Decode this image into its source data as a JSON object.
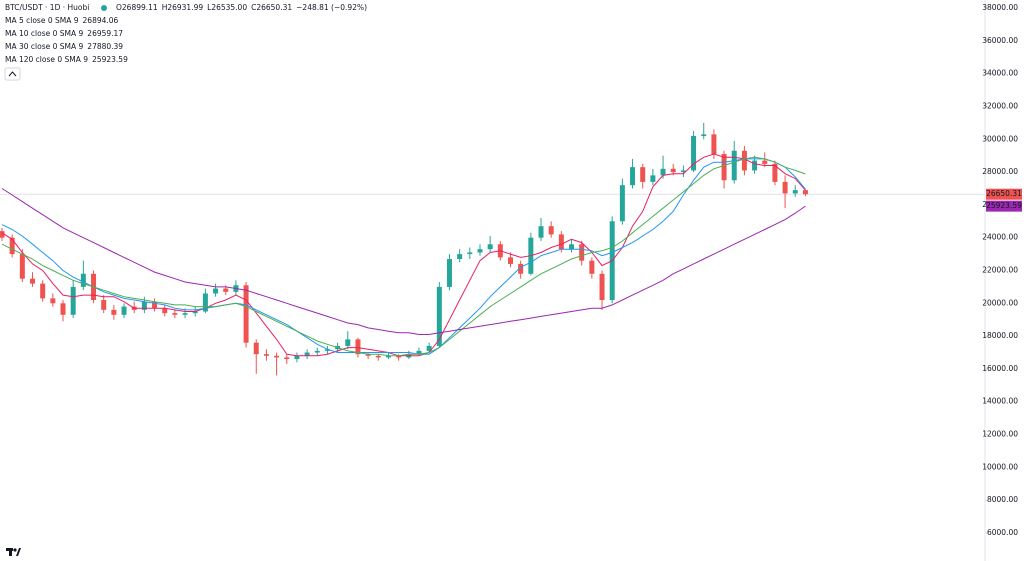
{
  "header": {
    "symbol": "BTC/USDT · 1D · Huobi",
    "ohlc": [
      "O26899.11",
      "H26931.99",
      "L26535.00",
      "C26650.31",
      "−248.81 (−0.92%)"
    ]
  },
  "chart_data": {
    "type": "candlestick",
    "up_color": "#26a69a",
    "down_color": "#ef5350",
    "candles": [
      [
        24400,
        24600,
        23800,
        24000
      ],
      [
        24000,
        24200,
        22800,
        23000
      ],
      [
        23000,
        23300,
        21300,
        21500
      ],
      [
        21500,
        21900,
        21000,
        21200
      ],
      [
        21200,
        21400,
        20100,
        20300
      ],
      [
        20300,
        20600,
        19800,
        20000
      ],
      [
        20000,
        20200,
        18900,
        19300
      ],
      [
        19300,
        21400,
        19100,
        21000
      ],
      [
        21000,
        22600,
        20800,
        21800
      ],
      [
        21800,
        22000,
        20000,
        20200
      ],
      [
        20200,
        20500,
        19400,
        19600
      ],
      [
        19600,
        19900,
        19000,
        19300
      ],
      [
        19300,
        20000,
        19100,
        19800
      ],
      [
        19800,
        20100,
        19400,
        19600
      ],
      [
        19600,
        20400,
        19400,
        20100
      ],
      [
        20100,
        20300,
        19500,
        19700
      ],
      [
        19700,
        19900,
        19200,
        19400
      ],
      [
        19400,
        19600,
        19100,
        19300
      ],
      [
        19300,
        19700,
        19100,
        19400
      ],
      [
        19400,
        19800,
        19200,
        19500
      ],
      [
        19500,
        20900,
        19400,
        20600
      ],
      [
        20600,
        21200,
        20400,
        20900
      ],
      [
        20900,
        21100,
        20500,
        20700
      ],
      [
        20700,
        21400,
        20500,
        21100
      ],
      [
        21100,
        21300,
        17300,
        17600
      ],
      [
        17600,
        17800,
        15700,
        16900
      ],
      [
        16900,
        17200,
        16500,
        16800
      ],
      [
        16800,
        17000,
        15600,
        16700
      ],
      [
        16700,
        16900,
        16300,
        16600
      ],
      [
        16600,
        17000,
        16400,
        16800
      ],
      [
        16800,
        17200,
        16600,
        17000
      ],
      [
        17000,
        17300,
        16800,
        17100
      ],
      [
        17100,
        17400,
        16900,
        17200
      ],
      [
        17200,
        17600,
        17000,
        17400
      ],
      [
        17400,
        18300,
        17200,
        17800
      ],
      [
        17800,
        17900,
        16700,
        16900
      ],
      [
        16900,
        17000,
        16600,
        16800
      ],
      [
        16800,
        16900,
        16500,
        16700
      ],
      [
        16700,
        17000,
        16600,
        16800
      ],
      [
        16800,
        16900,
        16500,
        16700
      ],
      [
        16700,
        17100,
        16600,
        16900
      ],
      [
        16900,
        17300,
        16800,
        17100
      ],
      [
        17100,
        17600,
        17000,
        17400
      ],
      [
        17400,
        21300,
        17300,
        21000
      ],
      [
        21000,
        23000,
        20800,
        22700
      ],
      [
        22700,
        23300,
        22500,
        23000
      ],
      [
        23000,
        23400,
        22700,
        23100
      ],
      [
        23100,
        23600,
        22900,
        23300
      ],
      [
        23300,
        24100,
        23100,
        23600
      ],
      [
        23600,
        23800,
        22600,
        22800
      ],
      [
        22800,
        23100,
        22200,
        22400
      ],
      [
        22400,
        22600,
        21500,
        21800
      ],
      [
        21800,
        24300,
        21700,
        24000
      ],
      [
        24000,
        25200,
        23800,
        24700
      ],
      [
        24700,
        25000,
        24000,
        24200
      ],
      [
        24200,
        24400,
        23100,
        23300
      ],
      [
        23300,
        23900,
        23100,
        23600
      ],
      [
        23600,
        23800,
        22300,
        22600
      ],
      [
        22600,
        22800,
        21500,
        21800
      ],
      [
        21800,
        22000,
        19600,
        20200
      ],
      [
        20200,
        25300,
        20000,
        25000
      ],
      [
        25000,
        27600,
        24800,
        27200
      ],
      [
        27200,
        28800,
        27000,
        28300
      ],
      [
        28300,
        28500,
        27000,
        27400
      ],
      [
        27400,
        28200,
        27200,
        27800
      ],
      [
        27800,
        29000,
        27600,
        28200
      ],
      [
        28200,
        28500,
        27800,
        28000
      ],
      [
        28000,
        28400,
        27700,
        28100
      ],
      [
        28100,
        30500,
        28000,
        30200
      ],
      [
        30200,
        31000,
        30000,
        30300
      ],
      [
        30300,
        30600,
        28800,
        29100
      ],
      [
        29100,
        29300,
        27000,
        27500
      ],
      [
        27500,
        29900,
        27300,
        29300
      ],
      [
        29300,
        29600,
        27800,
        28100
      ],
      [
        28100,
        29000,
        27900,
        28700
      ],
      [
        28700,
        29200,
        28300,
        28500
      ],
      [
        28500,
        28700,
        27200,
        27400
      ],
      [
        27400,
        27800,
        25800,
        26700
      ],
      [
        26700,
        27200,
        26500,
        26900
      ],
      [
        26899.11,
        26931.99,
        26535,
        26650.31
      ]
    ],
    "series": [
      {
        "name": "MA 5 close 0 SMA 9",
        "color": "#e91e63",
        "values": [
          24300,
          23900,
          23100,
          22400,
          22000,
          21200,
          20500,
          20400,
          20500,
          20500,
          20400,
          20400,
          20100,
          19700,
          19700,
          19700,
          19700,
          19600,
          19500,
          19500,
          19700,
          20000,
          20200,
          20500,
          20200,
          19400,
          18600,
          17800,
          16900,
          16800,
          16800,
          16800,
          16900,
          17100,
          17300,
          17300,
          17200,
          17100,
          17000,
          16800,
          16800,
          16800,
          17000,
          17800,
          19000,
          20200,
          21400,
          22600,
          23100,
          23200,
          23000,
          22800,
          22900,
          23100,
          23400,
          23600,
          23900,
          23700,
          23100,
          22300,
          22600,
          23400,
          24700,
          25600,
          27100,
          27800,
          27900,
          27900,
          28500,
          28900,
          29100,
          28900,
          28900,
          28800,
          28500,
          28400,
          28400,
          27900,
          27600,
          26894.06
        ]
      },
      {
        "name": "MA 10 close 0 SMA 9",
        "color": "#2196f3",
        "values": [
          24800,
          24500,
          24100,
          23600,
          23100,
          22600,
          22000,
          21600,
          21300,
          21000,
          20700,
          20500,
          20300,
          20200,
          20100,
          20000,
          19900,
          19700,
          19600,
          19600,
          19700,
          19800,
          19900,
          20000,
          19900,
          19600,
          19300,
          19000,
          18700,
          18300,
          17900,
          17500,
          17200,
          17000,
          17000,
          17000,
          17000,
          17000,
          17000,
          17000,
          17000,
          16900,
          16900,
          17300,
          17900,
          18500,
          19100,
          19700,
          20400,
          21000,
          21600,
          22200,
          22500,
          22900,
          23100,
          23300,
          23300,
          23300,
          23200,
          22900,
          23100,
          23400,
          23700,
          24100,
          24500,
          25000,
          25600,
          26600,
          27500,
          28300,
          28600,
          28600,
          28700,
          28800,
          28800,
          28800,
          28600,
          28300,
          27700,
          26959.17
        ]
      },
      {
        "name": "MA 30 close 0 SMA 9",
        "color": "#4caf50",
        "values": [
          23600,
          23300,
          23000,
          22700,
          22300,
          22000,
          21700,
          21400,
          21200,
          21000,
          20800,
          20600,
          20400,
          20300,
          20200,
          20100,
          20000,
          19900,
          19900,
          19800,
          19800,
          19800,
          19900,
          20000,
          19800,
          19500,
          19200,
          18900,
          18600,
          18300,
          18000,
          17700,
          17500,
          17300,
          17100,
          17000,
          16900,
          16900,
          16800,
          16800,
          16900,
          16900,
          17000,
          17300,
          17800,
          18300,
          18800,
          19300,
          19800,
          20200,
          20600,
          21000,
          21400,
          21800,
          22100,
          22400,
          22700,
          22900,
          23100,
          23200,
          23400,
          23800,
          24300,
          24800,
          25300,
          25800,
          26300,
          26800,
          27300,
          27800,
          28200,
          28400,
          28600,
          28800,
          28900,
          28800,
          28600,
          28300,
          28100,
          27880.39
        ]
      },
      {
        "name": "MA 120 close 0 SMA 9",
        "color": "#9c27b0",
        "values": [
          27000,
          26600,
          26200,
          25800,
          25400,
          25000,
          24600,
          24300,
          24000,
          23700,
          23400,
          23100,
          22800,
          22500,
          22200,
          21900,
          21700,
          21500,
          21300,
          21200,
          21100,
          21000,
          21000,
          20900,
          20800,
          20600,
          20400,
          20200,
          20000,
          19800,
          19600,
          19400,
          19200,
          19000,
          18800,
          18700,
          18500,
          18400,
          18300,
          18200,
          18200,
          18100,
          18100,
          18200,
          18300,
          18400,
          18500,
          18600,
          18700,
          18800,
          18900,
          19000,
          19100,
          19200,
          19300,
          19400,
          19500,
          19600,
          19700,
          19700,
          19900,
          20200,
          20500,
          20800,
          21100,
          21400,
          21800,
          22100,
          22400,
          22700,
          23000,
          23300,
          23600,
          23900,
          24200,
          24500,
          24800,
          25100,
          25500,
          25923.59
        ]
      }
    ],
    "ylim": [
      4290,
      38490
    ],
    "yticks": [
      {
        "value": 6000,
        "label": "6000.00"
      },
      {
        "value": 8000,
        "label": "8000.00"
      },
      {
        "value": 10000,
        "label": "10000.00"
      },
      {
        "value": 12000,
        "label": "12000.00"
      },
      {
        "value": 14000,
        "label": "14000.00"
      },
      {
        "value": 16000,
        "label": "16000.00"
      },
      {
        "value": 18000,
        "label": "18000.00"
      },
      {
        "value": 20000,
        "label": "20000.00"
      },
      {
        "value": 22000,
        "label": "22000.00"
      },
      {
        "value": 24000,
        "label": "24000.00"
      },
      {
        "value": 26000,
        "label": "26000.00"
      },
      {
        "value": 28000,
        "label": "28000.00"
      },
      {
        "value": 30000,
        "label": "30000.00"
      },
      {
        "value": 32000,
        "label": "32000.00"
      },
      {
        "value": 34000,
        "label": "34000.00"
      },
      {
        "value": 36000,
        "label": "36000.00"
      },
      {
        "value": 38000,
        "label": "38000.00"
      }
    ],
    "grid": false
  }
}
